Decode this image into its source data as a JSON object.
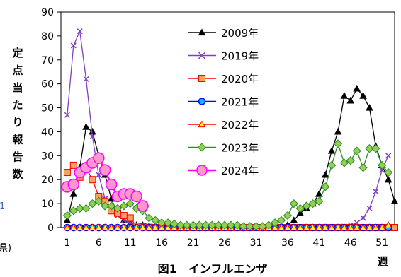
{
  "chart_data": {
    "type": "line",
    "title": "図1　インフルエンザ",
    "xlabel": "週",
    "ylabel": "定点当たり報告数",
    "x_ticks": [
      1,
      6,
      11,
      16,
      21,
      26,
      31,
      36,
      41,
      46,
      51
    ],
    "y_ticks": [
      0,
      10,
      20,
      30,
      40,
      50,
      60,
      70,
      80,
      90
    ],
    "xlim": [
      0,
      53
    ],
    "ylim": [
      0,
      90
    ],
    "grid": false,
    "legend_position": "top-center",
    "edge_fragments": {
      "left_bracket": "県)",
      "left_blue": "1"
    },
    "series": [
      {
        "name": "2009年",
        "color": "#000000",
        "marker": "triangle",
        "marker_fill": "#000000",
        "x": [
          1,
          2,
          3,
          4,
          5,
          6,
          7,
          8,
          9,
          10,
          11,
          12,
          13,
          14,
          15,
          16,
          17,
          18,
          19,
          20,
          21,
          22,
          23,
          24,
          25,
          26,
          27,
          28,
          29,
          30,
          31,
          32,
          33,
          34,
          35,
          36,
          37,
          38,
          39,
          40,
          41,
          42,
          43,
          44,
          45,
          46,
          47,
          48,
          49,
          50,
          51,
          52,
          53
        ],
        "y": [
          3,
          14,
          25,
          42,
          40,
          30,
          22,
          12,
          6,
          3,
          2,
          1,
          1,
          0.5,
          0.5,
          0.5,
          0.3,
          0.3,
          0.3,
          0.2,
          0.2,
          0.2,
          0.2,
          0.2,
          0.2,
          0.2,
          0.2,
          0.3,
          0.3,
          0.3,
          0.3,
          0.3,
          0.3,
          0.5,
          0.5,
          1,
          3,
          6,
          8,
          10,
          14,
          22,
          32,
          40,
          55,
          53,
          58,
          55,
          50,
          34,
          26,
          20,
          11
        ]
      },
      {
        "name": "2019年",
        "color": "#7f3fbf",
        "marker": "x",
        "marker_fill": "#7f3fbf",
        "x": [
          1,
          2,
          3,
          4,
          5,
          6,
          7,
          8,
          9,
          10,
          11,
          12,
          13,
          14,
          15,
          16,
          17,
          18,
          19,
          20,
          21,
          22,
          23,
          24,
          25,
          26,
          27,
          28,
          29,
          30,
          31,
          32,
          33,
          34,
          35,
          36,
          37,
          38,
          39,
          40,
          41,
          42,
          43,
          44,
          45,
          46,
          47,
          48,
          49,
          50,
          51,
          52
        ],
        "y": [
          47,
          76,
          82,
          62,
          38,
          22,
          12,
          8,
          5,
          3,
          2,
          1,
          0.5,
          0.3,
          0.2,
          0.1,
          0.1,
          0.1,
          0.1,
          0.1,
          0.1,
          0.1,
          0.1,
          0.1,
          0.1,
          0.1,
          0.1,
          0.1,
          0.1,
          0.1,
          0.1,
          0.1,
          0.1,
          0.1,
          0.1,
          0.1,
          0.1,
          0.1,
          0.1,
          0.2,
          0.2,
          0.2,
          0.2,
          0.3,
          0.5,
          1,
          2,
          4,
          8,
          15,
          24,
          30
        ]
      },
      {
        "name": "2020年",
        "color": "#ff0000",
        "marker": "square",
        "marker_fill": "#f4a460",
        "x": [
          1,
          2,
          3,
          4,
          5,
          6,
          7,
          8,
          9,
          10,
          11,
          12,
          13,
          14,
          15,
          16,
          17,
          18,
          19,
          20,
          21,
          22,
          23,
          24,
          25,
          26,
          27,
          28,
          29,
          30,
          31,
          32,
          33,
          34,
          35,
          36,
          37,
          38,
          39,
          40,
          41,
          42,
          43,
          44,
          45,
          46,
          47,
          48,
          49,
          50,
          51,
          52,
          53
        ],
        "y": [
          23,
          26,
          21,
          25,
          20,
          13,
          11,
          7,
          6,
          5,
          4,
          0.5,
          0.3,
          0.1,
          0,
          0,
          0,
          0,
          0,
          0,
          0,
          0,
          0,
          0,
          0,
          0,
          0,
          0,
          0,
          0,
          0,
          0,
          0,
          0,
          0,
          0,
          0,
          0,
          0,
          0,
          0,
          0,
          0,
          0,
          0,
          0,
          0,
          0,
          0,
          0,
          0,
          0,
          0
        ]
      },
      {
        "name": "2021年",
        "color": "#0000ff",
        "marker": "circle",
        "marker_fill": "#00bfff",
        "x": [
          1,
          2,
          3,
          4,
          5,
          6,
          7,
          8,
          9,
          10,
          11,
          12,
          13,
          14,
          15,
          16,
          17,
          18,
          19,
          20,
          21,
          22,
          23,
          24,
          25,
          26,
          27,
          28,
          29,
          30,
          31,
          32,
          33,
          34,
          35,
          36,
          37,
          38,
          39,
          40,
          41,
          42,
          43,
          44,
          45,
          46,
          47,
          48,
          49,
          50,
          51,
          52
        ],
        "y": [
          0,
          0,
          0,
          0,
          0,
          0,
          0,
          0,
          0,
          0,
          0,
          0,
          0,
          0,
          0,
          0,
          0,
          0,
          0,
          0,
          0,
          0,
          0,
          0,
          0,
          0,
          0,
          0,
          0,
          0,
          0,
          0,
          0,
          0,
          0,
          0,
          0,
          0,
          0,
          0,
          0,
          0,
          0,
          0,
          0,
          0,
          0,
          0,
          0,
          0,
          0,
          0
        ]
      },
      {
        "name": "2022年",
        "color": "#ff0000",
        "marker": "triangle",
        "marker_fill": "#ffff00",
        "x": [
          1,
          2,
          3,
          4,
          5,
          6,
          7,
          8,
          9,
          10,
          11,
          12,
          13,
          14,
          15,
          16,
          17,
          18,
          19,
          20,
          21,
          22,
          23,
          24,
          25,
          26,
          27,
          28,
          29,
          30,
          31,
          32,
          33,
          34,
          35,
          36,
          37,
          38,
          39,
          40,
          41,
          42,
          43,
          44,
          45,
          46,
          47,
          48,
          49,
          50,
          51,
          52
        ],
        "y": [
          0,
          0,
          0,
          0,
          0,
          0,
          0,
          0,
          0,
          0,
          0,
          0,
          0,
          0,
          0,
          0,
          0,
          0,
          0,
          0,
          0,
          0,
          0,
          0,
          0,
          0,
          0,
          0,
          0,
          0,
          0,
          0,
          0,
          0,
          0,
          0,
          0,
          0,
          0,
          0,
          0,
          0,
          0,
          0,
          0,
          0,
          0,
          0,
          0,
          0,
          0,
          1
        ]
      },
      {
        "name": "2023年",
        "color": "#2e8b2e",
        "marker": "diamond",
        "marker_fill": "#92d050",
        "x": [
          1,
          2,
          3,
          4,
          5,
          6,
          7,
          8,
          9,
          10,
          11,
          12,
          13,
          14,
          15,
          16,
          17,
          18,
          19,
          20,
          21,
          22,
          23,
          24,
          25,
          26,
          27,
          28,
          29,
          30,
          31,
          32,
          33,
          34,
          35,
          36,
          37,
          38,
          39,
          40,
          41,
          42,
          43,
          44,
          45,
          46,
          47,
          48,
          49,
          50,
          51,
          52
        ],
        "y": [
          5,
          7,
          8,
          8,
          10,
          11,
          9,
          9,
          8,
          9,
          10,
          8,
          7,
          4,
          3,
          2,
          2,
          1.5,
          1,
          1,
          1,
          1,
          1,
          1,
          1,
          1,
          1,
          1,
          0.5,
          0.5,
          0.5,
          0.5,
          1,
          2,
          3,
          5,
          10,
          8,
          9,
          10,
          11,
          17,
          26,
          35,
          27,
          28,
          32,
          25,
          33,
          33,
          26,
          23
        ]
      },
      {
        "name": "2024年",
        "color": "#ff00ff",
        "marker": "circle",
        "marker_fill": "#ff99cc",
        "x": [
          1,
          2,
          3,
          4,
          5,
          6,
          7,
          8,
          9,
          10,
          11,
          12,
          13
        ],
        "y": [
          17,
          18,
          23,
          25,
          27,
          29,
          24,
          18,
          13,
          14,
          14,
          13,
          9
        ]
      }
    ]
  }
}
